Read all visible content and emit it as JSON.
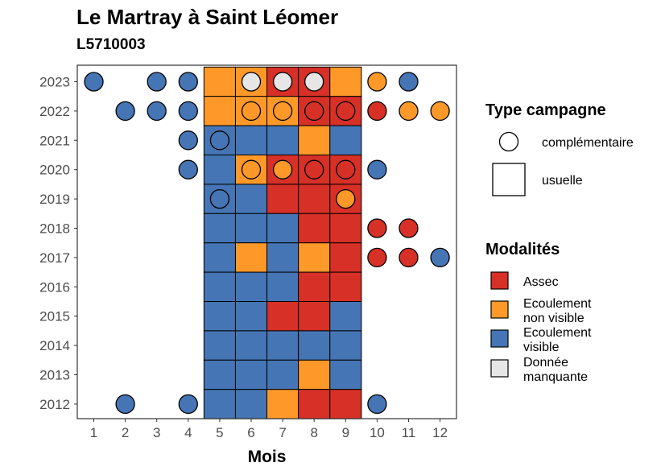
{
  "title": "Le Martray à Saint Léomer",
  "subtitle": "L5710003",
  "chart_data": {
    "type": "heatmap",
    "xlabel": "Mois",
    "ylabel": "",
    "x_ticks": [
      1,
      2,
      3,
      4,
      5,
      6,
      7,
      8,
      9,
      10,
      11,
      12
    ],
    "y_ticks": [
      2012,
      2013,
      2014,
      2015,
      2016,
      2017,
      2018,
      2019,
      2020,
      2021,
      2022,
      2023
    ],
    "grid": false,
    "legend_position": "right",
    "colors": {
      "Assec": "#d73027",
      "Ecoulement non visible": "#fe9929",
      "Ecoulement visible": "#4575b4",
      "Donnée manquante": "#e6e6e6"
    },
    "legend_type": {
      "title": "Type campagne",
      "items": [
        {
          "shape": "circle",
          "label": "complémentaire"
        },
        {
          "shape": "square",
          "label": "usuelle"
        }
      ]
    },
    "legend_modalites": {
      "title": "Modalités",
      "items": [
        {
          "key": "Assec",
          "lines": [
            "Assec"
          ]
        },
        {
          "key": "Ecoulement non visible",
          "lines": [
            "Ecoulement",
            "non visible"
          ]
        },
        {
          "key": "Ecoulement visible",
          "lines": [
            "Ecoulement",
            "visible"
          ]
        },
        {
          "key": "Donnée manquante",
          "lines": [
            "Donnée",
            "manquante"
          ]
        }
      ]
    },
    "usuelle": [
      {
        "year": 2023,
        "months": [
          "Ecoulement non visible",
          "Ecoulement non visible",
          "Assec",
          "Assec",
          "Ecoulement non visible"
        ]
      },
      {
        "year": 2022,
        "months": [
          "Ecoulement non visible",
          "Ecoulement non visible",
          "Ecoulement non visible",
          "Assec",
          "Assec"
        ]
      },
      {
        "year": 2021,
        "months": [
          "Ecoulement visible",
          "Ecoulement visible",
          "Ecoulement visible",
          "Ecoulement non visible",
          "Ecoulement visible"
        ]
      },
      {
        "year": 2020,
        "months": [
          "Ecoulement visible",
          "Ecoulement non visible",
          "Assec",
          "Assec",
          "Assec"
        ]
      },
      {
        "year": 2019,
        "months": [
          "Ecoulement visible",
          "Ecoulement visible",
          "Assec",
          "Assec",
          "Assec"
        ]
      },
      {
        "year": 2018,
        "months": [
          "Ecoulement visible",
          "Ecoulement visible",
          "Ecoulement visible",
          "Assec",
          "Assec"
        ]
      },
      {
        "year": 2017,
        "months": [
          "Ecoulement visible",
          "Ecoulement non visible",
          "Ecoulement visible",
          "Ecoulement non visible",
          "Assec"
        ]
      },
      {
        "year": 2016,
        "months": [
          "Ecoulement visible",
          "Ecoulement visible",
          "Ecoulement visible",
          "Assec",
          "Assec"
        ]
      },
      {
        "year": 2015,
        "months": [
          "Ecoulement visible",
          "Ecoulement visible",
          "Assec",
          "Assec",
          "Ecoulement visible"
        ]
      },
      {
        "year": 2014,
        "months": [
          "Ecoulement visible",
          "Ecoulement visible",
          "Ecoulement visible",
          "Ecoulement visible",
          "Ecoulement visible"
        ]
      },
      {
        "year": 2013,
        "months": [
          "Ecoulement visible",
          "Ecoulement visible",
          "Ecoulement visible",
          "Ecoulement non visible",
          "Ecoulement visible"
        ]
      },
      {
        "year": 2012,
        "months": [
          "Ecoulement visible",
          "Ecoulement visible",
          "Ecoulement non visible",
          "Assec",
          "Assec"
        ]
      }
    ],
    "usuelle_months": [
      5,
      6,
      7,
      8,
      9
    ],
    "complementaire": [
      {
        "year": 2023,
        "month": 1,
        "value": "Ecoulement visible"
      },
      {
        "year": 2023,
        "month": 3,
        "value": "Ecoulement visible"
      },
      {
        "year": 2023,
        "month": 4,
        "value": "Ecoulement visible"
      },
      {
        "year": 2023,
        "month": 6,
        "value": "Donnée manquante"
      },
      {
        "year": 2023,
        "month": 7,
        "value": "Donnée manquante"
      },
      {
        "year": 2023,
        "month": 8,
        "value": "Donnée manquante"
      },
      {
        "year": 2023,
        "month": 10,
        "value": "Ecoulement non visible"
      },
      {
        "year": 2023,
        "month": 11,
        "value": "Ecoulement visible"
      },
      {
        "year": 2022,
        "month": 2,
        "value": "Ecoulement visible"
      },
      {
        "year": 2022,
        "month": 3,
        "value": "Ecoulement visible"
      },
      {
        "year": 2022,
        "month": 4,
        "value": "Ecoulement visible"
      },
      {
        "year": 2022,
        "month": 6,
        "value": "Ecoulement non visible"
      },
      {
        "year": 2022,
        "month": 7,
        "value": "Ecoulement non visible"
      },
      {
        "year": 2022,
        "month": 8,
        "value": "Assec"
      },
      {
        "year": 2022,
        "month": 9,
        "value": "Assec"
      },
      {
        "year": 2022,
        "month": 10,
        "value": "Assec"
      },
      {
        "year": 2022,
        "month": 11,
        "value": "Ecoulement non visible"
      },
      {
        "year": 2022,
        "month": 12,
        "value": "Ecoulement non visible"
      },
      {
        "year": 2021,
        "month": 4,
        "value": "Ecoulement visible"
      },
      {
        "year": 2021,
        "month": 5,
        "value": "Ecoulement visible"
      },
      {
        "year": 2020,
        "month": 4,
        "value": "Ecoulement visible"
      },
      {
        "year": 2020,
        "month": 6,
        "value": "Ecoulement non visible"
      },
      {
        "year": 2020,
        "month": 7,
        "value": "Ecoulement non visible"
      },
      {
        "year": 2020,
        "month": 8,
        "value": "Assec"
      },
      {
        "year": 2020,
        "month": 9,
        "value": "Assec"
      },
      {
        "year": 2020,
        "month": 10,
        "value": "Ecoulement visible"
      },
      {
        "year": 2019,
        "month": 5,
        "value": "Ecoulement visible"
      },
      {
        "year": 2019,
        "month": 9,
        "value": "Ecoulement non visible"
      },
      {
        "year": 2018,
        "month": 10,
        "value": "Assec"
      },
      {
        "year": 2018,
        "month": 11,
        "value": "Assec"
      },
      {
        "year": 2017,
        "month": 10,
        "value": "Assec"
      },
      {
        "year": 2017,
        "month": 11,
        "value": "Assec"
      },
      {
        "year": 2017,
        "month": 12,
        "value": "Ecoulement visible"
      },
      {
        "year": 2012,
        "month": 2,
        "value": "Ecoulement visible"
      },
      {
        "year": 2012,
        "month": 4,
        "value": "Ecoulement visible"
      },
      {
        "year": 2012,
        "month": 10,
        "value": "Ecoulement visible"
      }
    ]
  }
}
